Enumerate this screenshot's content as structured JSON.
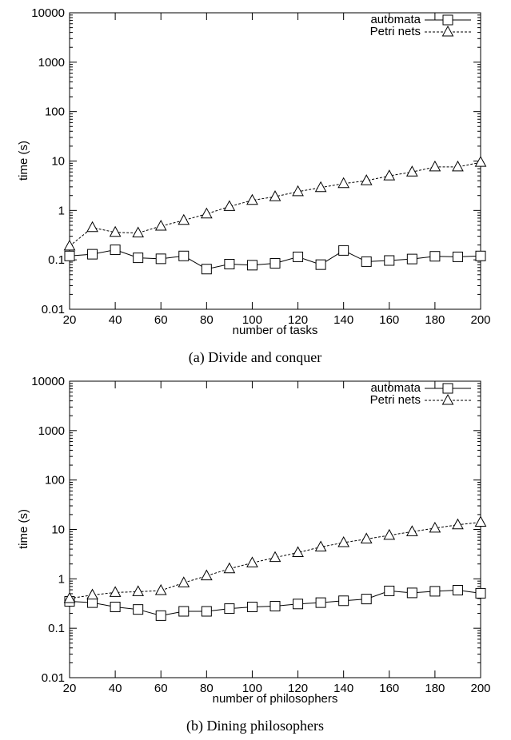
{
  "chart_data": [
    {
      "type": "line",
      "caption": "(a) Divide and conquer",
      "xlabel": "number of tasks",
      "ylabel": "time (s)",
      "xlim": [
        20,
        200
      ],
      "ylim": [
        0.01,
        10000
      ],
      "yscale": "log",
      "x_ticks": [
        "20",
        "40",
        "60",
        "80",
        "100",
        "120",
        "140",
        "160",
        "180",
        "200"
      ],
      "y_ticks": [
        "0.01",
        "0.1",
        "1",
        "10",
        "100",
        "1000",
        "10000"
      ],
      "legend_position": "top-right",
      "x": [
        20,
        30,
        40,
        50,
        60,
        70,
        80,
        90,
        100,
        110,
        120,
        130,
        140,
        150,
        160,
        170,
        180,
        190,
        200
      ],
      "series": [
        {
          "name": "automata",
          "marker": "square",
          "line": "solid",
          "values": [
            0.12,
            0.13,
            0.16,
            0.11,
            0.105,
            0.12,
            0.065,
            0.082,
            0.078,
            0.085,
            0.115,
            0.08,
            0.155,
            0.092,
            0.097,
            0.104,
            0.118,
            0.115,
            0.12
          ]
        },
        {
          "name": "Petri nets",
          "marker": "triangle",
          "line": "dashed",
          "values": [
            0.19,
            0.45,
            0.36,
            0.35,
            0.48,
            0.63,
            0.85,
            1.2,
            1.6,
            1.9,
            2.4,
            2.9,
            3.5,
            4.0,
            5.0,
            6.0,
            7.6,
            7.6,
            9.4
          ]
        }
      ]
    },
    {
      "type": "line",
      "caption": "(b) Dining philosophers",
      "xlabel": "number of philosophers",
      "ylabel": "time (s)",
      "xlim": [
        20,
        200
      ],
      "ylim": [
        0.01,
        10000
      ],
      "yscale": "log",
      "x_ticks": [
        "20",
        "40",
        "60",
        "80",
        "100",
        "120",
        "140",
        "160",
        "180",
        "200"
      ],
      "y_ticks": [
        "0.01",
        "0.1",
        "1",
        "10",
        "100",
        "1000",
        "10000"
      ],
      "legend_position": "top-right",
      "x": [
        20,
        30,
        40,
        50,
        60,
        70,
        80,
        90,
        100,
        110,
        120,
        130,
        140,
        150,
        160,
        170,
        180,
        190,
        200
      ],
      "series": [
        {
          "name": "automata",
          "marker": "square",
          "line": "solid",
          "values": [
            0.35,
            0.33,
            0.27,
            0.24,
            0.18,
            0.22,
            0.22,
            0.25,
            0.27,
            0.28,
            0.31,
            0.33,
            0.36,
            0.39,
            0.57,
            0.52,
            0.56,
            0.59,
            0.51
          ]
        },
        {
          "name": "Petri nets",
          "marker": "triangle",
          "line": "dashed",
          "values": [
            0.4,
            0.47,
            0.53,
            0.55,
            0.58,
            0.83,
            1.15,
            1.6,
            2.1,
            2.7,
            3.4,
            4.4,
            5.4,
            6.4,
            7.6,
            9.0,
            10.6,
            12.4,
            14.0
          ]
        }
      ]
    }
  ]
}
